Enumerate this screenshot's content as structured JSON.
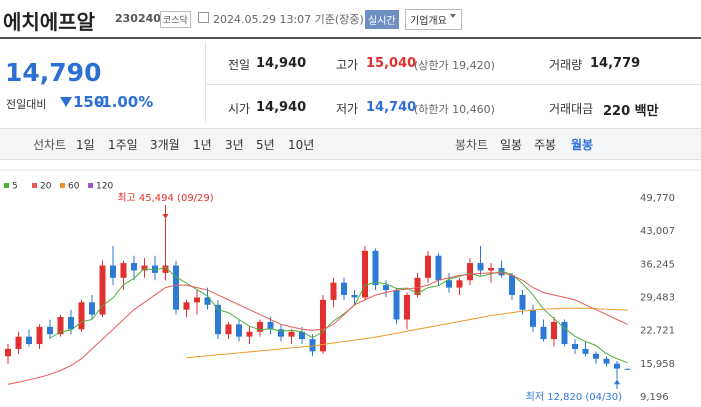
{
  "header": {
    "name": "에치에프알",
    "code": "230240",
    "market": "코스닥",
    "timestamp": "2024.05.29 13:07 기준(장중)",
    "realtime": "실시간",
    "company_info": "기업개요"
  },
  "quote": {
    "price": "14,790",
    "change_label": "전일대비",
    "change": "150",
    "change_rate": "-1.00%"
  },
  "stats": [
    {
      "label": "전일",
      "value": "14,940"
    },
    {
      "label": "고가",
      "value": "15,040",
      "note": "(상한가 19,420)"
    },
    {
      "label": "거래량",
      "value": "14,779"
    },
    {
      "label": "시가",
      "value": "14,940"
    },
    {
      "label": "저가",
      "value": "14,740",
      "note": "(하한가 10,460)"
    },
    {
      "label": "거래대금",
      "value": "220 백만"
    }
  ],
  "line_tabs": {
    "label": "선차트",
    "items": [
      "1일",
      "1주일",
      "3개월",
      "1년",
      "3년",
      "5년",
      "10년"
    ]
  },
  "candle_tabs": {
    "label": "봉차트",
    "items": [
      "일봉",
      "주봉",
      "월봉"
    ],
    "active": 2
  },
  "chart_data": {
    "type": "candlestick",
    "open": [
      17500,
      19000,
      21500,
      20000,
      23500,
      22000,
      25500,
      23000,
      28500,
      26000,
      36000,
      33500,
      36500,
      35000,
      36000,
      34500,
      36000,
      27000,
      28500,
      29500,
      28000,
      22000,
      24000,
      21500,
      22500,
      24500,
      23000,
      21500,
      22500,
      21000,
      18500,
      29000,
      32500,
      30000,
      29500,
      39000,
      32000,
      31000,
      25000,
      30000,
      33500,
      38000,
      33000,
      31500,
      33000,
      36500,
      35000,
      35500,
      34000,
      30000,
      27000,
      23500,
      21000,
      24500,
      20000,
      19000,
      18000,
      17000,
      16000,
      14940
    ],
    "high": [
      20000,
      22500,
      23000,
      24000,
      25000,
      26000,
      27000,
      29000,
      30000,
      37000,
      40000,
      37000,
      38000,
      37500,
      38000,
      45494,
      37000,
      29000,
      31000,
      31500,
      29000,
      24500,
      25000,
      23500,
      25000,
      25500,
      24000,
      23000,
      23500,
      22000,
      30000,
      33500,
      33500,
      31000,
      40000,
      39500,
      33000,
      31500,
      30500,
      34500,
      39000,
      38500,
      34500,
      33500,
      37500,
      40000,
      36500,
      37000,
      34500,
      31000,
      28000,
      25000,
      25500,
      25000,
      21000,
      20500,
      18500,
      17500,
      16500,
      15040
    ],
    "low": [
      16000,
      18000,
      19500,
      19000,
      21000,
      21500,
      22000,
      22500,
      25000,
      25500,
      32000,
      31000,
      33000,
      33500,
      33000,
      33000,
      26000,
      25500,
      26000,
      27000,
      21000,
      21000,
      20500,
      20000,
      21500,
      22000,
      20500,
      20000,
      20000,
      17500,
      18000,
      27500,
      29000,
      28000,
      29000,
      31000,
      29500,
      24000,
      23000,
      29500,
      32500,
      32000,
      30500,
      30000,
      32000,
      34000,
      32500,
      33500,
      29000,
      26000,
      22500,
      20500,
      19500,
      19500,
      18000,
      17500,
      16000,
      15500,
      12820,
      14740
    ],
    "close": [
      19000,
      21500,
      20000,
      23500,
      22000,
      25500,
      23000,
      28500,
      26000,
      36000,
      33500,
      36500,
      35000,
      36000,
      34500,
      36000,
      27000,
      28500,
      29500,
      28000,
      22000,
      24000,
      21500,
      22500,
      24500,
      23000,
      21500,
      22500,
      21000,
      18500,
      29000,
      32500,
      30000,
      29500,
      39000,
      32000,
      31000,
      25000,
      30000,
      33500,
      38000,
      33000,
      31500,
      33000,
      36500,
      35000,
      35500,
      34000,
      30000,
      27000,
      23500,
      21000,
      24500,
      20000,
      19000,
      18000,
      17000,
      16000,
      15000,
      14790
    ],
    "up_color": "#e0312f",
    "down_color": "#2d7ad6",
    "series": [
      {
        "name": "5",
        "color": "#4caf3a",
        "values": [
          null,
          null,
          null,
          null,
          21200,
          22500,
          22800,
          24500,
          25000,
          27800,
          29400,
          32100,
          33400,
          35400,
          35100,
          35600,
          33700,
          32400,
          31100,
          29800,
          27000,
          26400,
          25000,
          23600,
          22900,
          23100,
          22600,
          22800,
          22500,
          21300,
          22500,
          24700,
          26200,
          27900,
          32000,
          32600,
          32300,
          31300,
          31400,
          30300,
          31500,
          31900,
          33200,
          33800,
          34400,
          33800,
          34300,
          34800,
          34200,
          32300,
          30000,
          27100,
          25200,
          23200,
          21600,
          20500,
          19700,
          18000,
          17000,
          16160
        ]
      },
      {
        "name": "20",
        "color": "#e85a5a",
        "values": [
          11800,
          12200,
          12700,
          13200,
          13800,
          14600,
          15600,
          17000,
          19000,
          21000,
          23000,
          25000,
          27000,
          28500,
          30000,
          31500,
          32000,
          32000,
          31500,
          31000,
          30000,
          29000,
          28000,
          27000,
          26000,
          25000,
          24000,
          23500,
          23000,
          22800,
          23000,
          24000,
          26000,
          28000,
          29000,
          30000,
          30500,
          31000,
          31200,
          31500,
          32000,
          33000,
          33500,
          34000,
          34200,
          34400,
          34500,
          34500,
          34000,
          33000,
          31500,
          30500,
          30000,
          29500,
          29000,
          28000,
          27000,
          26000,
          25000,
          24000
        ]
      },
      {
        "name": "60",
        "color": "#f2962c",
        "values": [
          null,
          null,
          null,
          null,
          null,
          null,
          null,
          null,
          null,
          null,
          null,
          null,
          null,
          null,
          null,
          null,
          null,
          17200,
          17400,
          17600,
          17800,
          18000,
          18200,
          18400,
          18600,
          18800,
          19000,
          19200,
          19400,
          19600,
          19900,
          20200,
          20500,
          20800,
          21100,
          21400,
          21800,
          22200,
          22600,
          23000,
          23400,
          23800,
          24200,
          24600,
          25000,
          25400,
          25800,
          26100,
          26400,
          26700,
          26900,
          27100,
          27200,
          27300,
          27300,
          27300,
          27200,
          27100,
          27000,
          26900
        ]
      },
      {
        "name": "120",
        "color": "#9b59c9",
        "values": [
          null,
          null,
          null,
          null,
          null,
          null,
          null,
          null,
          null,
          null,
          null,
          null,
          null,
          null,
          null,
          null,
          null,
          null,
          null,
          null,
          null,
          null,
          null,
          null,
          null,
          null,
          null,
          null,
          null,
          null,
          null,
          null,
          null,
          null,
          null,
          null,
          null,
          null,
          null,
          null,
          null,
          null,
          null,
          null,
          null,
          null,
          null,
          null,
          null,
          null,
          null,
          null,
          null,
          null,
          null,
          null,
          null,
          null,
          null,
          null
        ]
      }
    ],
    "ylim": [
      9196,
      49770
    ],
    "yticks": [
      {
        "value": 49770,
        "label": "49,770"
      },
      {
        "value": 43007,
        "label": "43,007"
      },
      {
        "value": 36245,
        "label": "36,245"
      },
      {
        "value": 29483,
        "label": "29,483"
      },
      {
        "value": 22721,
        "label": "22,721"
      },
      {
        "value": 15958,
        "label": "15,958"
      },
      {
        "value": 9196,
        "label": "9,196"
      }
    ],
    "annotations": [
      {
        "text": "최고 45,494 (09/29)",
        "color": "#e0312f"
      },
      {
        "text": "최저 12,820 (04/30)",
        "color": "#2d7ad6"
      }
    ],
    "grid": false
  }
}
